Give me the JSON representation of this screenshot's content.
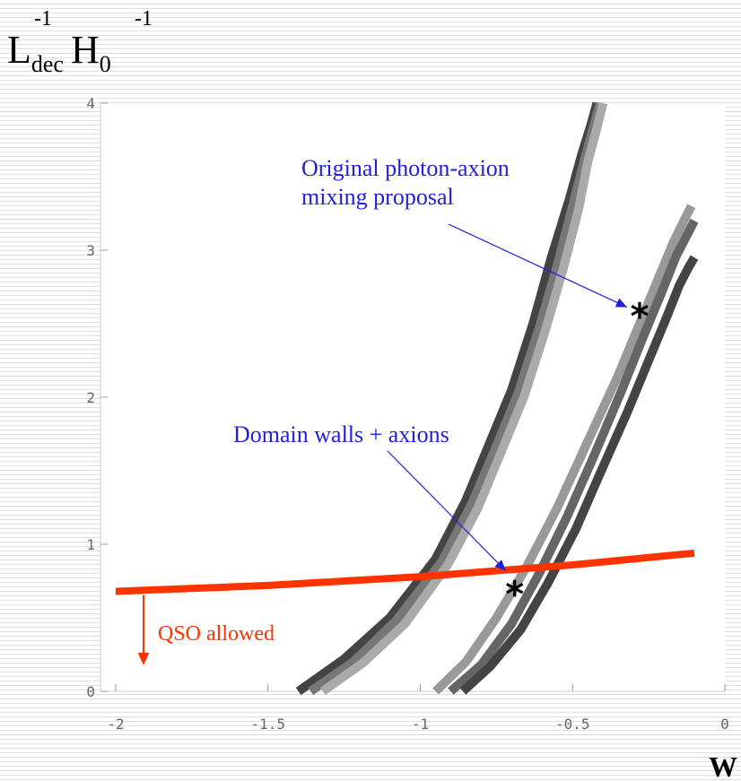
{
  "chart_data": {
    "type": "line",
    "xlabel": "W",
    "ylabel": {
      "base1": "L",
      "sup1": "-1",
      "sub1": "dec",
      "base2": "H",
      "sup2": "-1",
      "sub2": "0"
    },
    "xlim": [
      -2.05,
      0.0
    ],
    "ylim": [
      0,
      4
    ],
    "x_ticks": [
      -2,
      -1.5,
      -1,
      -0.5,
      0
    ],
    "x_tick_labels": [
      "-2",
      "-1.5",
      "-1",
      "-0.5",
      "0"
    ],
    "y_ticks": [
      0,
      1,
      2,
      3,
      4
    ],
    "y_tick_labels": [
      "0",
      "1",
      "2",
      "3",
      "4"
    ],
    "grid": false,
    "series": [
      {
        "color": "#444444",
        "x": [
          -1.4,
          -1.25,
          -1.1,
          -0.95,
          -0.85,
          -0.78,
          -0.7,
          -0.63,
          -0.57,
          -0.51,
          -0.47,
          -0.44,
          -0.42
        ],
        "y": [
          0,
          0.22,
          0.5,
          0.9,
          1.3,
          1.65,
          2.05,
          2.5,
          2.95,
          3.35,
          3.65,
          3.85,
          4.0
        ]
      },
      {
        "color": "#777777",
        "x": [
          -1.36,
          -1.22,
          -1.08,
          -0.93,
          -0.83,
          -0.76,
          -0.68,
          -0.61,
          -0.55,
          -0.5,
          -0.46,
          -0.43,
          -0.41
        ],
        "y": [
          0,
          0.2,
          0.48,
          0.88,
          1.28,
          1.62,
          2.02,
          2.47,
          2.9,
          3.3,
          3.62,
          3.85,
          4.0
        ]
      },
      {
        "color": "#aaaaaa",
        "x": [
          -1.32,
          -1.19,
          -1.05,
          -0.91,
          -0.81,
          -0.74,
          -0.66,
          -0.59,
          -0.53,
          -0.48,
          -0.45,
          -0.42,
          -0.4
        ],
        "y": [
          0,
          0.19,
          0.46,
          0.86,
          1.25,
          1.6,
          2.0,
          2.45,
          2.88,
          3.28,
          3.6,
          3.83,
          4.0
        ]
      },
      {
        "color": "#999999",
        "x": [
          -0.95,
          -0.85,
          -0.75,
          -0.65,
          -0.55,
          -0.45,
          -0.35,
          -0.28,
          -0.22,
          -0.17,
          -0.13,
          -0.11
        ],
        "y": [
          0,
          0.2,
          0.5,
          0.85,
          1.25,
          1.7,
          2.15,
          2.5,
          2.8,
          3.05,
          3.22,
          3.3
        ]
      },
      {
        "color": "#666666",
        "x": [
          -0.9,
          -0.8,
          -0.7,
          -0.61,
          -0.52,
          -0.43,
          -0.34,
          -0.27,
          -0.21,
          -0.16,
          -0.12,
          -0.1
        ],
        "y": [
          0,
          0.18,
          0.46,
          0.8,
          1.18,
          1.6,
          2.04,
          2.4,
          2.7,
          2.96,
          3.12,
          3.2
        ]
      },
      {
        "color": "#444444",
        "x": [
          -0.86,
          -0.77,
          -0.67,
          -0.58,
          -0.49,
          -0.41,
          -0.32,
          -0.25,
          -0.19,
          -0.15,
          -0.12,
          -0.1
        ],
        "y": [
          0,
          0.17,
          0.42,
          0.74,
          1.1,
          1.48,
          1.9,
          2.25,
          2.55,
          2.76,
          2.88,
          2.95
        ]
      },
      {
        "color": "#ff3300",
        "x": [
          -2.0,
          -1.5,
          -1.0,
          -0.5,
          -0.1
        ],
        "y": [
          0.68,
          0.72,
          0.78,
          0.86,
          0.94
        ]
      }
    ],
    "markers": [
      {
        "x": -0.28,
        "y": 2.6,
        "symbol": "*"
      },
      {
        "x": -0.69,
        "y": 0.71,
        "symbol": "*"
      }
    ],
    "annotations": [
      {
        "lines": [
          "Original photon-axion",
          "mixing proposal"
        ],
        "color": "#1f1fe0"
      },
      {
        "lines": [
          "Domain walls + axions"
        ],
        "color": "#1f1fe0"
      },
      {
        "lines": [
          "QSO allowed"
        ],
        "color": "#ff3300"
      }
    ]
  }
}
